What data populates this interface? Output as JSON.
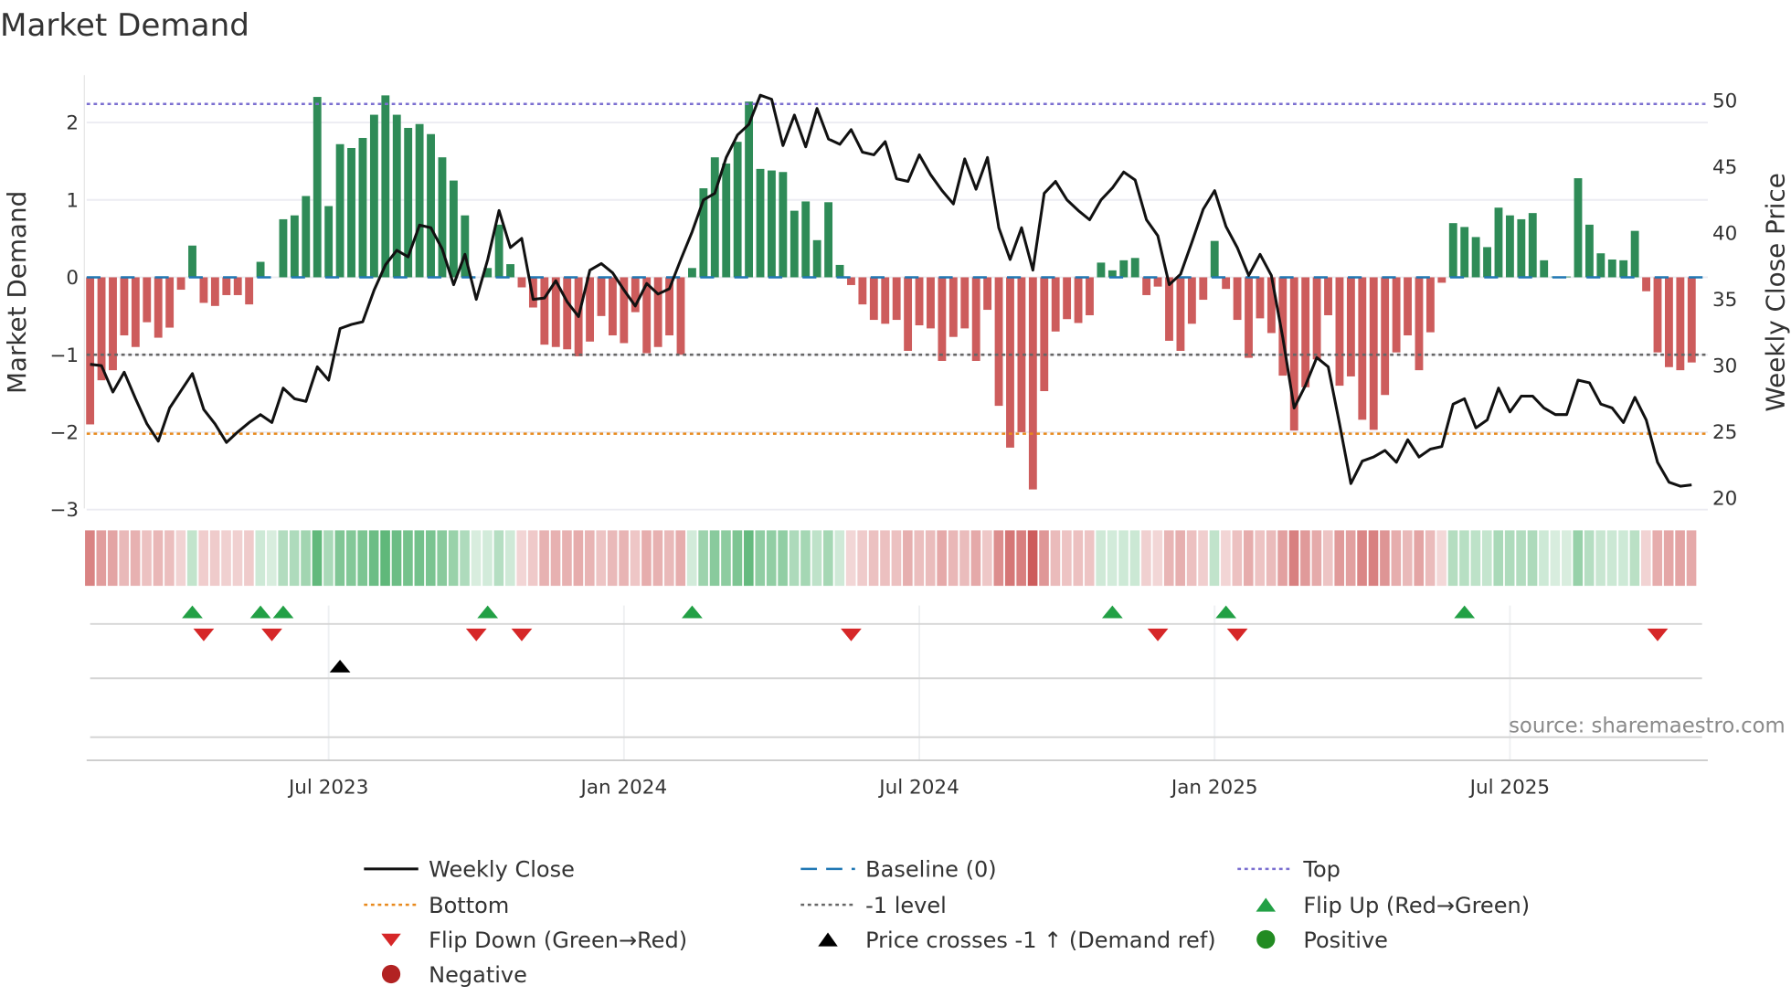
{
  "chart_data": {
    "type": "bar",
    "title": "Market Demand",
    "ylabel": "Market Demand",
    "y2label": "Weekly Close Price",
    "ylim": [
      -3,
      2.5
    ],
    "y2lim": [
      20,
      50
    ],
    "y_ticks": [
      {
        "v": 2,
        "label": "2"
      },
      {
        "v": 1,
        "label": "1"
      },
      {
        "v": 0,
        "label": "0"
      },
      {
        "v": -1,
        "label": "−1"
      },
      {
        "v": -2,
        "label": "−2"
      },
      {
        "v": -3,
        "label": "−3"
      }
    ],
    "y2_ticks": [
      {
        "v": 50,
        "label": "50"
      },
      {
        "v": 45,
        "label": "45"
      },
      {
        "v": 40,
        "label": "40"
      },
      {
        "v": 35,
        "label": "35"
      },
      {
        "v": 30,
        "label": "30"
      },
      {
        "v": 25,
        "label": "25"
      },
      {
        "v": 20,
        "label": "20"
      }
    ],
    "x_ticks": [
      {
        "week": 21,
        "label": "Jul 2023"
      },
      {
        "week": 47,
        "label": "Jan 2024"
      },
      {
        "week": 73,
        "label": "Jul 2024"
      },
      {
        "week": 99,
        "label": "Jan 2025"
      },
      {
        "week": 125,
        "label": "Jul 2025"
      }
    ],
    "x_unit": "weeks",
    "reference_lines": {
      "top": 2.24,
      "bottom": -2.02,
      "minus_one": -1,
      "baseline": 0
    },
    "demand": [
      -1.9,
      -1.33,
      -1.2,
      -0.75,
      -0.9,
      -0.58,
      -0.78,
      -0.65,
      -0.16,
      0.41,
      -0.33,
      -0.37,
      -0.23,
      -0.23,
      -0.35,
      0.2,
      0,
      0.75,
      0.8,
      1.05,
      2.33,
      0.92,
      1.72,
      1.67,
      1.8,
      2.1,
      2.35,
      2.1,
      1.93,
      1.98,
      1.85,
      1.55,
      1.25,
      0.8,
      0,
      0.12,
      0.68,
      0.17,
      -0.13,
      -0.39,
      -0.87,
      -0.9,
      -0.93,
      -1.02,
      -0.83,
      -0.5,
      -0.75,
      -0.85,
      -0.45,
      -0.98,
      -0.9,
      -0.75,
      -1.0,
      0.12,
      1.15,
      1.55,
      1.47,
      1.75,
      2.27,
      1.4,
      1.38,
      1.36,
      0.86,
      0.98,
      0.48,
      0.97,
      0.16,
      -0.1,
      -0.35,
      -0.55,
      -0.6,
      -0.55,
      -0.95,
      -0.62,
      -0.66,
      -1.08,
      -0.77,
      -0.66,
      -1.08,
      -0.42,
      -1.66,
      -2.2,
      -2.0,
      -2.74,
      -1.47,
      -0.7,
      -0.54,
      -0.59,
      -0.49,
      0.19,
      0.09,
      0.22,
      0.25,
      -0.23,
      -0.12,
      -0.82,
      -0.95,
      -0.6,
      -0.29,
      0.47,
      -0.15,
      -0.55,
      -1.04,
      -0.53,
      -0.72,
      -1.27,
      -1.98,
      -1.42,
      -1.06,
      -0.49,
      -1.4,
      -1.28,
      -1.84,
      -1.97,
      -1.52,
      -0.97,
      -0.75,
      -1.2,
      -0.71,
      -0.07,
      0.7,
      0.65,
      0.52,
      0.39,
      0.9,
      0.8,
      0.75,
      0.83,
      0.22,
      0.01,
      0.01,
      1.28,
      0.68,
      0.31,
      0.23,
      0.22,
      0.6,
      -0.18,
      -0.97,
      -1.16,
      -1.2,
      -1.1
    ],
    "price": [
      30.1,
      30.0,
      28.0,
      29.5,
      27.5,
      25.6,
      24.3,
      26.8,
      28.1,
      29.4,
      26.7,
      25.6,
      24.2,
      25.0,
      25.7,
      26.3,
      25.7,
      28.3,
      27.5,
      27.3,
      29.9,
      28.9,
      32.8,
      33.1,
      33.3,
      35.7,
      37.6,
      38.7,
      38.2,
      40.6,
      40.4,
      38.8,
      36.1,
      38.4,
      35.0,
      38.0,
      41.7,
      38.9,
      39.6,
      35.0,
      35.1,
      36.4,
      34.8,
      33.7,
      37.2,
      37.7,
      37.0,
      35.7,
      34.5,
      36.2,
      35.4,
      35.8,
      38.0,
      40.1,
      42.5,
      43.0,
      45.7,
      47.4,
      48.2,
      50.4,
      50.1,
      46.6,
      48.9,
      46.5,
      49.4,
      47.1,
      46.7,
      47.8,
      46.1,
      45.9,
      46.9,
      44.1,
      43.9,
      45.9,
      44.4,
      43.2,
      42.2,
      45.6,
      43.3,
      45.7,
      40.4,
      38.0,
      40.4,
      37.2,
      43.0,
      43.9,
      42.5,
      41.7,
      41.0,
      42.5,
      43.4,
      44.6,
      44.0,
      41.0,
      39.8,
      36.1,
      36.9,
      39.3,
      41.8,
      43.2,
      40.5,
      38.9,
      36.8,
      38.4,
      36.8,
      32.1,
      26.8,
      28.5,
      30.6,
      29.9,
      25.6,
      21.1,
      22.8,
      23.1,
      23.6,
      22.7,
      24.4,
      23.1,
      23.7,
      23.9,
      27.1,
      27.5,
      25.3,
      25.9,
      28.3,
      26.5,
      27.7,
      27.7,
      26.8,
      26.3,
      26.3,
      28.9,
      28.7,
      27.1,
      26.8,
      25.7,
      27.6,
      25.9,
      22.7,
      21.2,
      20.9,
      21.0
    ],
    "flip_up_weeks": [
      9,
      15,
      17,
      35,
      53,
      90,
      100,
      121
    ],
    "flip_down_weeks": [
      10,
      16,
      34,
      38,
      67,
      94,
      101,
      138
    ],
    "price_cross_weeks": [
      22
    ],
    "colors": {
      "positive": "#2e8b57",
      "negative": "#cd5c5c",
      "price": "#111111",
      "top": "#7b6fd0",
      "bottom": "#e8891c",
      "minus_one": "#666666",
      "baseline": "#1f77b4",
      "flip_up": "#22a045",
      "flip_down": "#d62728",
      "cross": "#000000",
      "neg_dot": "#b22222",
      "pos_dot": "#228b22"
    },
    "legend": {
      "weekly_close": "Weekly Close",
      "baseline": "Baseline (0)",
      "top": "Top",
      "bottom": "Bottom",
      "minus_one": "-1 level",
      "flip_up": "Flip Up (Red→Green)",
      "flip_down": "Flip Down (Green→Red)",
      "price_cross": "Price crosses -1 ↑ (Demand ref)",
      "positive": "Positive",
      "negative": "Negative"
    }
  },
  "source": "source: sharemaestro.com"
}
